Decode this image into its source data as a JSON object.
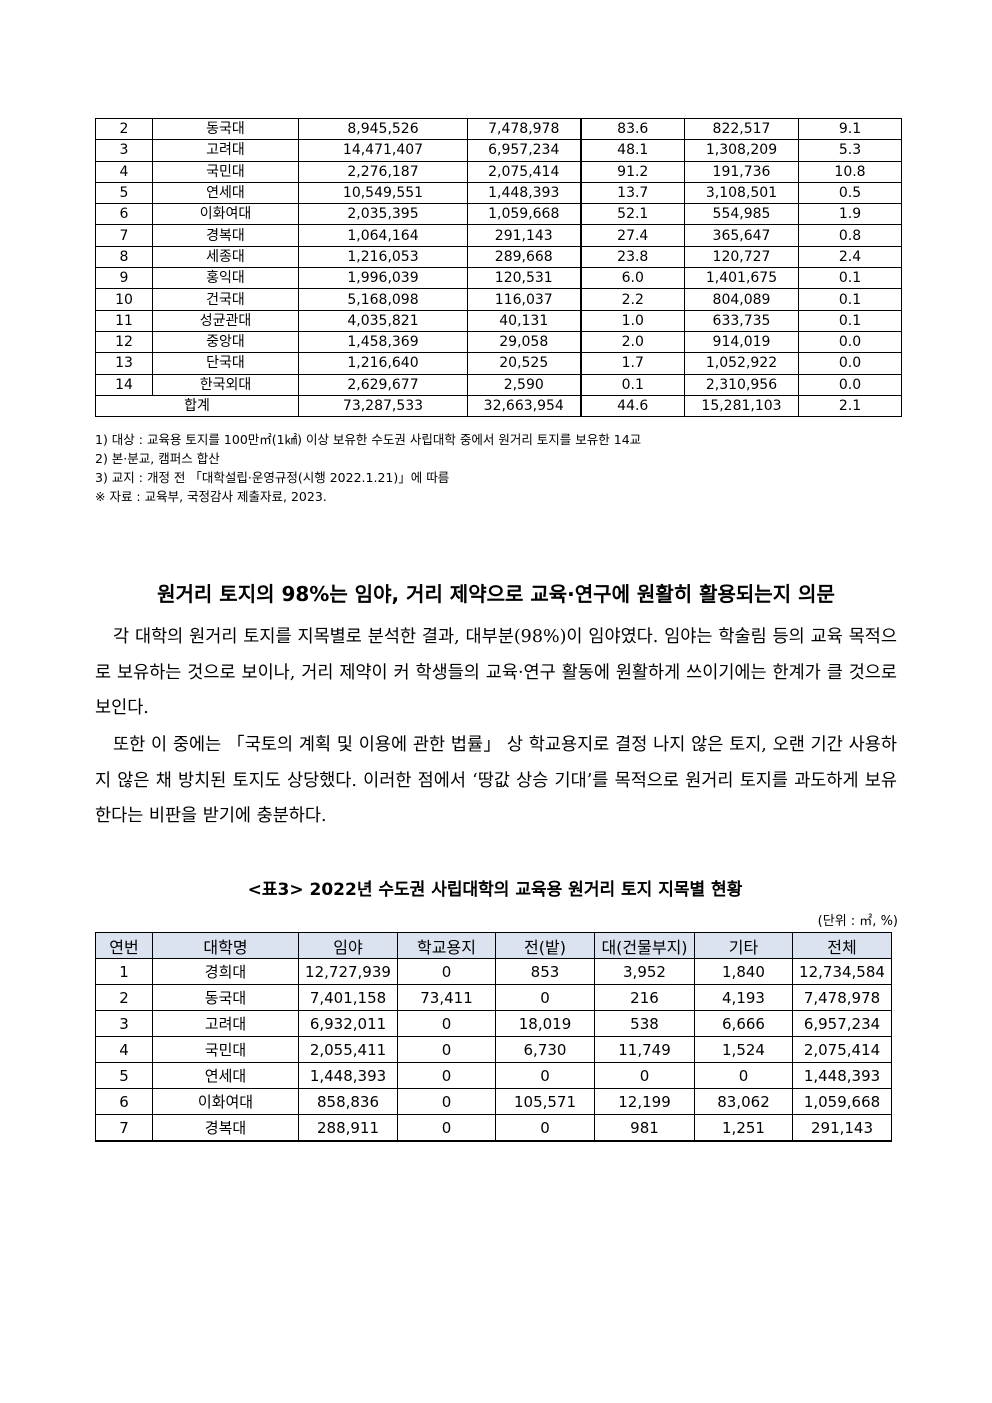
{
  "table1": {
    "rows": [
      [
        "2",
        "동국대",
        "8,945,526",
        "7,478,978",
        "83.6",
        "822,517",
        "9.1"
      ],
      [
        "3",
        "고려대",
        "14,471,407",
        "6,957,234",
        "48.1",
        "1,308,209",
        "5.3"
      ],
      [
        "4",
        "국민대",
        "2,276,187",
        "2,075,414",
        "91.2",
        "191,736",
        "10.8"
      ],
      [
        "5",
        "연세대",
        "10,549,551",
        "1,448,393",
        "13.7",
        "3,108,501",
        "0.5"
      ],
      [
        "6",
        "이화여대",
        "2,035,395",
        "1,059,668",
        "52.1",
        "554,985",
        "1.9"
      ],
      [
        "7",
        "경복대",
        "1,064,164",
        "291,143",
        "27.4",
        "365,647",
        "0.8"
      ],
      [
        "8",
        "세종대",
        "1,216,053",
        "289,668",
        "23.8",
        "120,727",
        "2.4"
      ],
      [
        "9",
        "홍익대",
        "1,996,039",
        "120,531",
        "6.0",
        "1,401,675",
        "0.1"
      ],
      [
        "10",
        "건국대",
        "5,168,098",
        "116,037",
        "2.2",
        "804,089",
        "0.1"
      ],
      [
        "11",
        "성균관대",
        "4,035,821",
        "40,131",
        "1.0",
        "633,735",
        "0.1"
      ],
      [
        "12",
        "중앙대",
        "1,458,369",
        "29,058",
        "2.0",
        "914,019",
        "0.0"
      ],
      [
        "13",
        "단국대",
        "1,216,640",
        "20,525",
        "1.7",
        "1,052,922",
        "0.0"
      ],
      [
        "14",
        "한국외대",
        "2,629,677",
        "2,590",
        "0.1",
        "2,310,956",
        "0.0"
      ]
    ],
    "total": [
      "합계",
      "73,287,533",
      "32,663,954",
      "44.6",
      "15,281,103",
      "2.1"
    ]
  },
  "notes": [
    "1) 대상 : 교육용 토지를 100만㎡(1㎢) 이상 보유한 수도권 사립대학 중에서 원거리 토지를 보유한 14교",
    "2) 본·분교, 캠퍼스 합산",
    "3) 교지 : 개정 전 「대학설립·운영규정(시행 2022.1.21)」에 따름",
    "※ 자료 : 교육부, 국정감사 제출자료, 2023."
  ],
  "section": {
    "heading": "원거리 토지의 98%는 임야, 거리 제약으로 교육·연구에 원활히 활용되는지 의문",
    "paragraphs": [
      "각 대학의 원거리 토지를 지목별로 분석한 결과, 대부분(98%)이 임야였다. 임야는 학술림 등의 교육 목적으로 보유하는 것으로 보이나, 거리 제약이 커 학생들의 교육·연구 활동에 원활하게 쓰이기에는 한계가 클 것으로 보인다.",
      "또한 이 중에는 「국토의 계획 및 이용에 관한 법률」 상 학교용지로 결정 나지 않은 토지, 오랜 기간 사용하지 않은 채 방치된 토지도 상당했다. 이러한 점에서 ‘땅값 상승 기대’를 목적으로 원거리 토지를 과도하게 보유한다는 비판을 받기에 충분하다."
    ]
  },
  "table2": {
    "caption": "<표3> 2022년 수도권 사립대학의 교육용 원거리 토지 지목별 현황",
    "unit": "(단위 : ㎡, %)",
    "header_color": "#dce3f0",
    "headers": [
      "연번",
      "대학명",
      "임야",
      "학교용지",
      "전(밭)",
      "대(건물부지)",
      "기타",
      "전체"
    ],
    "rows": [
      [
        "1",
        "경희대",
        "12,727,939",
        "0",
        "853",
        "3,952",
        "1,840",
        "12,734,584"
      ],
      [
        "2",
        "동국대",
        "7,401,158",
        "73,411",
        "0",
        "216",
        "4,193",
        "7,478,978"
      ],
      [
        "3",
        "고려대",
        "6,932,011",
        "0",
        "18,019",
        "538",
        "6,666",
        "6,957,234"
      ],
      [
        "4",
        "국민대",
        "2,055,411",
        "0",
        "6,730",
        "11,749",
        "1,524",
        "2,075,414"
      ],
      [
        "5",
        "연세대",
        "1,448,393",
        "0",
        "0",
        "0",
        "0",
        "1,448,393"
      ],
      [
        "6",
        "이화여대",
        "858,836",
        "0",
        "105,571",
        "12,199",
        "83,062",
        "1,059,668"
      ],
      [
        "7",
        "경복대",
        "288,911",
        "0",
        "0",
        "981",
        "1,251",
        "291,143"
      ]
    ]
  }
}
